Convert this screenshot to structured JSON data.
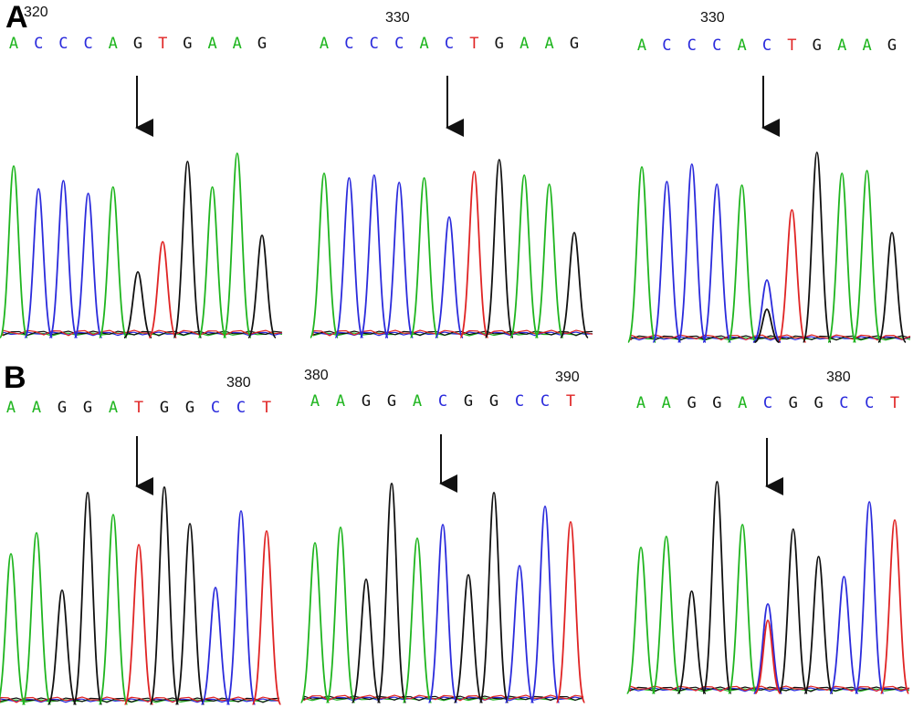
{
  "colors": {
    "A": "#1fb51f",
    "C": "#2b2bdc",
    "G": "#111111",
    "T": "#e02424"
  },
  "rows": [
    {
      "label": "A",
      "panels": [
        {
          "position_label": "320",
          "bases": [
            "A",
            "C",
            "C",
            "C",
            "A",
            "G",
            "T",
            "G",
            "A",
            "A",
            "G"
          ],
          "variant_index": 5
        },
        {
          "position_label": "330",
          "bases": [
            "A",
            "C",
            "C",
            "C",
            "A",
            "C",
            "T",
            "G",
            "A",
            "A",
            "G"
          ],
          "variant_index": 5
        },
        {
          "position_label": "330",
          "bases": [
            "A",
            "C",
            "C",
            "C",
            "A",
            "C",
            "T",
            "G",
            "A",
            "A",
            "G"
          ],
          "variant_index": 5
        }
      ]
    },
    {
      "label": "B",
      "panels": [
        {
          "position_label": "380",
          "bases": [
            "A",
            "A",
            "G",
            "G",
            "A",
            "T",
            "G",
            "G",
            "C",
            "C",
            "T"
          ],
          "variant_index": 5
        },
        {
          "position_label": "380",
          "position_label_2": "390",
          "bases": [
            "A",
            "A",
            "G",
            "G",
            "A",
            "C",
            "G",
            "G",
            "C",
            "C",
            "T"
          ],
          "variant_index": 5
        },
        {
          "position_label": "380",
          "bases": [
            "A",
            "A",
            "G",
            "G",
            "A",
            "C",
            "G",
            "G",
            "C",
            "C",
            "T"
          ],
          "variant_index": 5
        }
      ]
    }
  ]
}
